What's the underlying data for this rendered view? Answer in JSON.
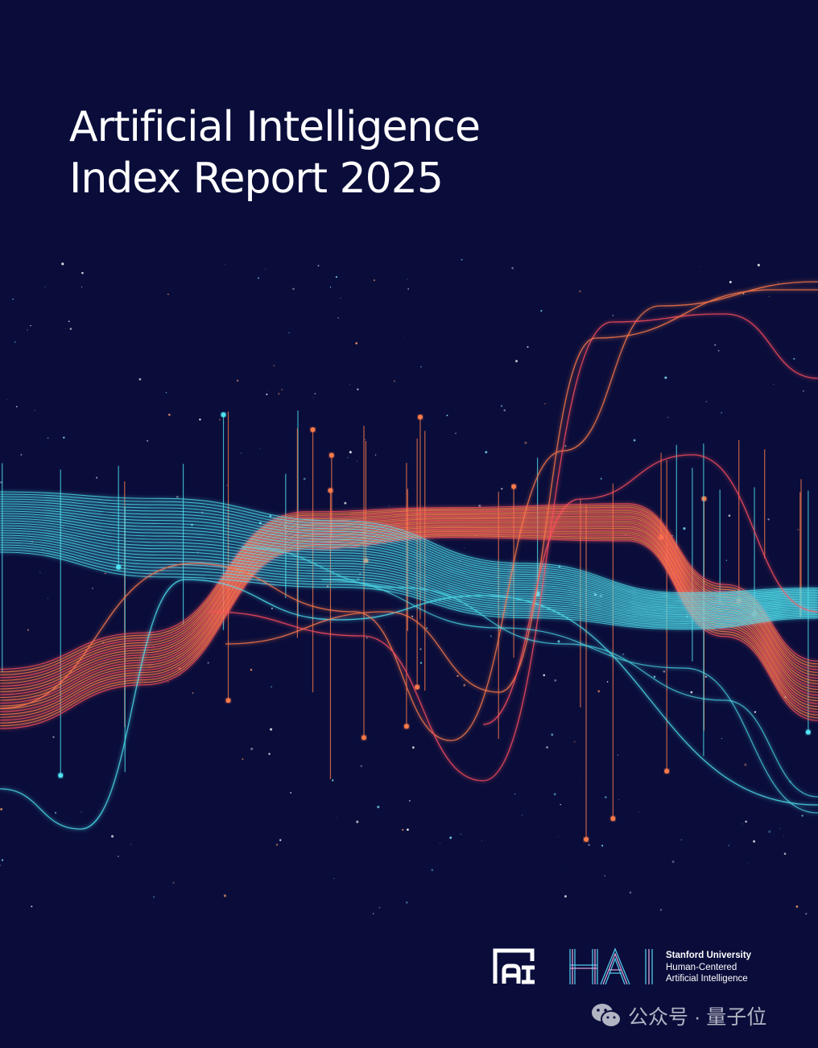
{
  "cover": {
    "title_line1": "Artificial Intelligence",
    "title_line2": "Index Report 2025"
  },
  "logos": {
    "ai_index_logo": "AI",
    "hai_logo": "HAI",
    "hai_line1": "Stanford University",
    "hai_line2": "Human-Centered",
    "hai_line3": "Artificial Intelligence"
  },
  "watermark": {
    "icon": "wechat-icon",
    "text": "公众号 · 量子位"
  },
  "colors": {
    "background": "#0a0d3a",
    "cyan": "#4fe3f0",
    "orange": "#ff7a4a",
    "red": "#ff4f5e"
  }
}
